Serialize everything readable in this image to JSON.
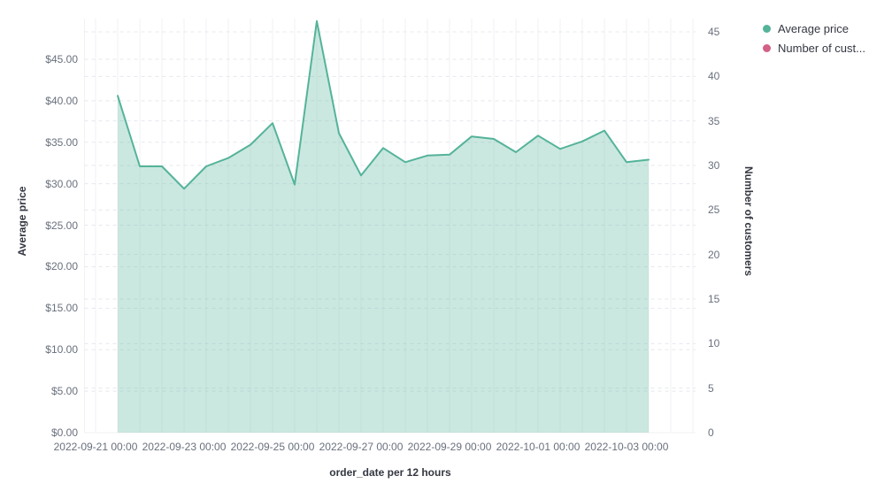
{
  "chart_data": {
    "type": "area",
    "title": "",
    "xlabel": "order_date per 12 hours",
    "left_axis": {
      "title": "Average price",
      "ticks": [
        "$0.00",
        "$5.00",
        "$10.00",
        "$15.00",
        "$20.00",
        "$25.00",
        "$30.00",
        "$35.00",
        "$40.00",
        "$45.00"
      ],
      "range": [
        0,
        50
      ]
    },
    "right_axis": {
      "title": "Number of customers",
      "ticks": [
        "0",
        "5",
        "10",
        "15",
        "20",
        "25",
        "30",
        "35",
        "40",
        "45"
      ],
      "range": [
        0,
        46.5
      ]
    },
    "x_ticks": [
      "2022-09-21 00:00",
      "2022-09-23 00:00",
      "2022-09-25 00:00",
      "2022-09-27 00:00",
      "2022-09-29 00:00",
      "2022-10-01 00:00",
      "2022-10-03 00:00"
    ],
    "x": [
      "2022-09-21 12:00",
      "2022-09-22 00:00",
      "2022-09-22 12:00",
      "2022-09-23 00:00",
      "2022-09-23 12:00",
      "2022-09-24 00:00",
      "2022-09-24 12:00",
      "2022-09-25 00:00",
      "2022-09-25 12:00",
      "2022-09-26 00:00",
      "2022-09-26 12:00",
      "2022-09-27 00:00",
      "2022-09-27 12:00",
      "2022-09-28 00:00",
      "2022-09-28 12:00",
      "2022-09-29 00:00",
      "2022-09-29 12:00",
      "2022-09-30 00:00",
      "2022-09-30 12:00",
      "2022-10-01 00:00",
      "2022-10-01 12:00",
      "2022-10-02 00:00",
      "2022-10-02 12:00",
      "2022-10-03 00:00",
      "2022-10-03 12:00"
    ],
    "series": [
      {
        "name": "Average price",
        "axis": "left",
        "color": "#54B399",
        "fill_opacity": 0.3,
        "values": [
          40.6,
          32.1,
          32.1,
          29.4,
          32.1,
          33.1,
          34.7,
          37.3,
          29.9,
          49.6,
          36.1,
          31.0,
          34.3,
          32.6,
          33.4,
          33.5,
          35.7,
          35.4,
          33.8,
          35.8,
          34.2,
          35.1,
          36.4,
          32.6,
          32.9
        ]
      }
    ],
    "legend": [
      {
        "label": "Average price",
        "color": "#54B399"
      },
      {
        "label": "Number of cust...",
        "color": "#D36086"
      }
    ],
    "legend_position": "right",
    "grid": true
  },
  "style": {
    "grid_vertical_color": "#f0f1f4",
    "grid_dashed_color": "#e6e8ee",
    "tick_color": "#69707D",
    "title_color": "#343741"
  }
}
